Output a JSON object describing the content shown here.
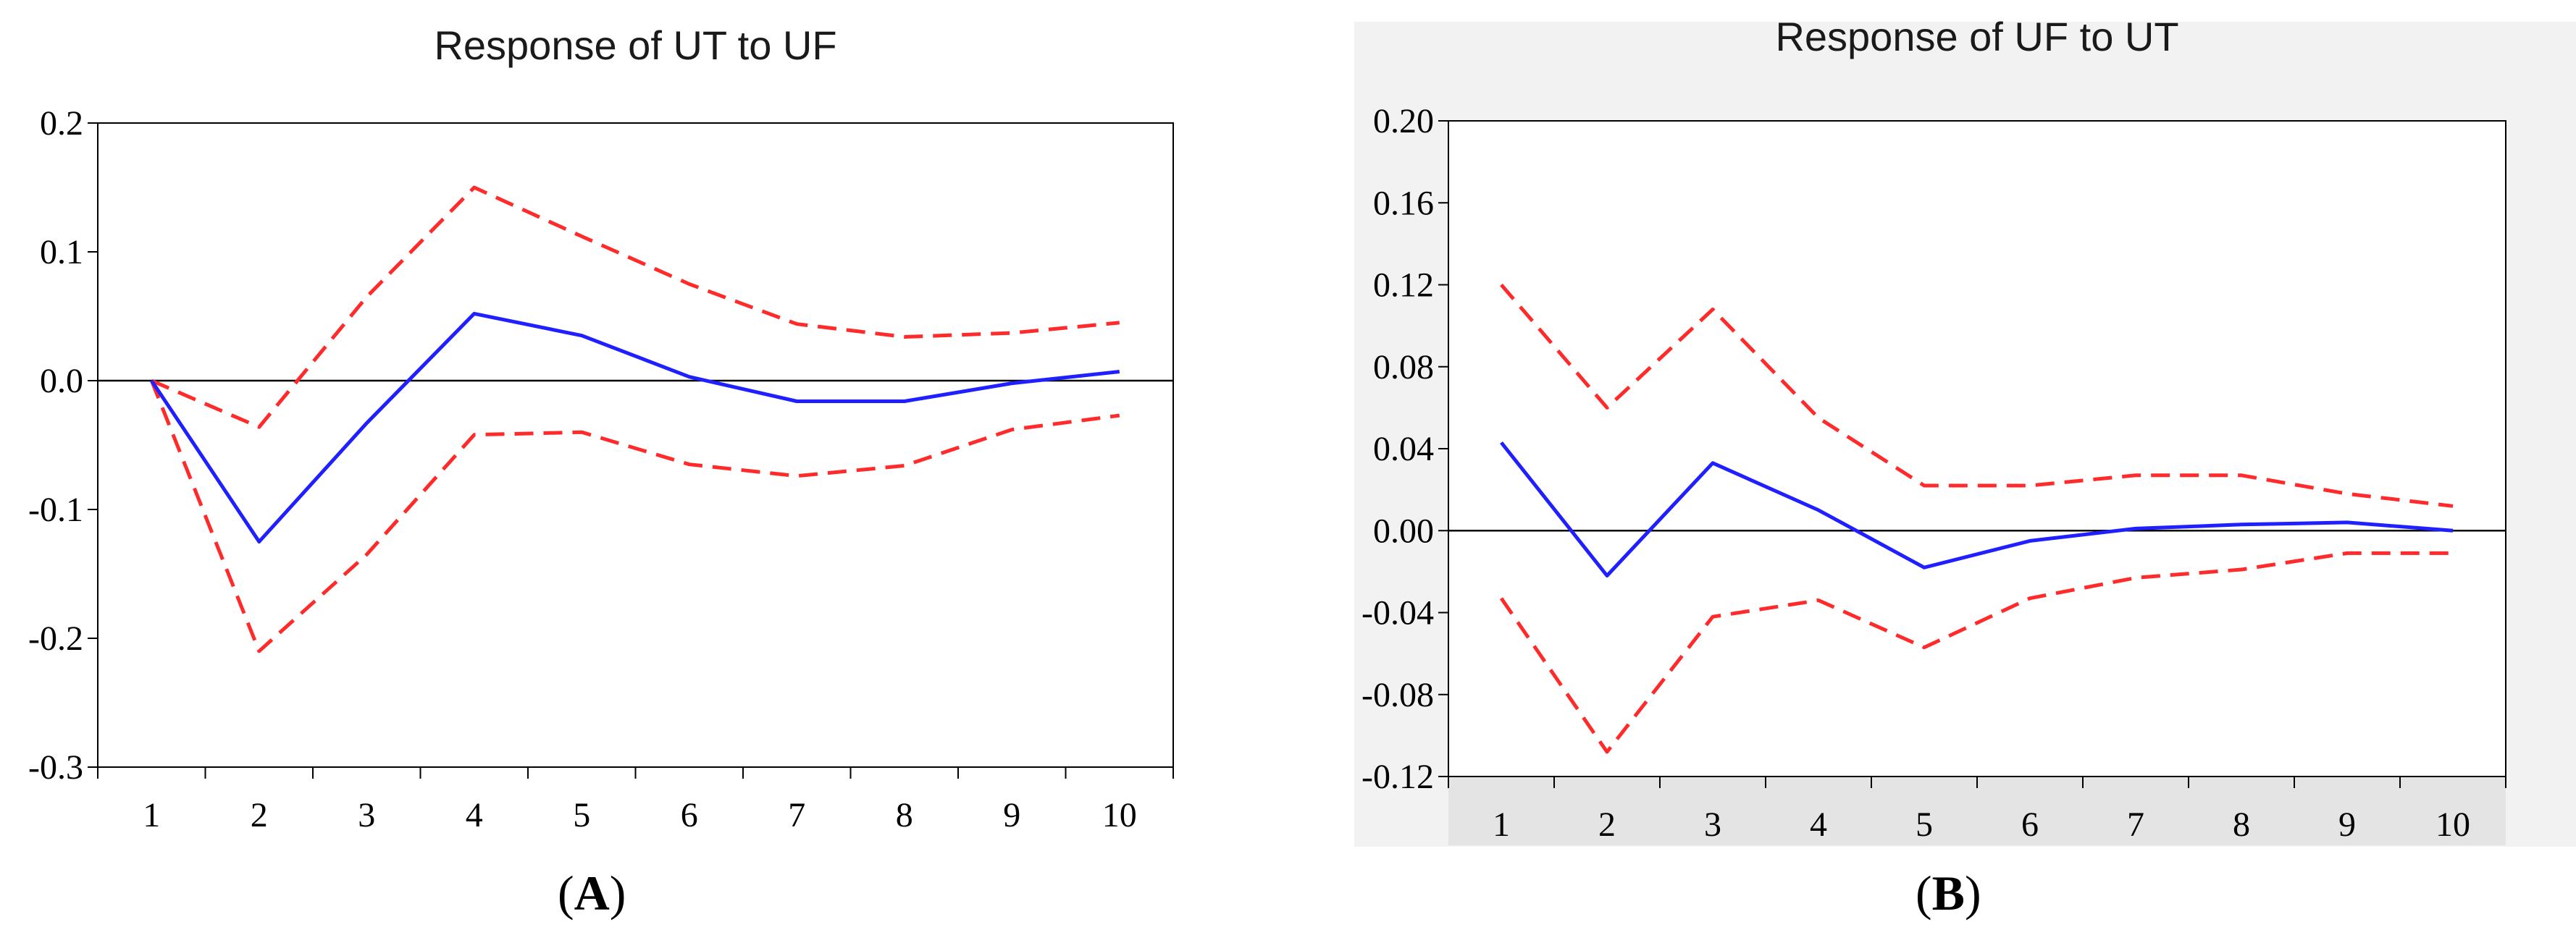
{
  "chart_data": [
    {
      "type": "line",
      "panel": "A",
      "title": "Response of UT to UF",
      "panel_label": {
        "open": "(",
        "letter": "A",
        "close": ")"
      },
      "x": [
        1,
        2,
        3,
        4,
        5,
        6,
        7,
        8,
        9,
        10
      ],
      "x_tick_labels": [
        "1",
        "2",
        "3",
        "4",
        "5",
        "6",
        "7",
        "8",
        "9",
        "10"
      ],
      "ylim": [
        -0.3,
        0.2
      ],
      "y_ticks": [
        0.2,
        0.1,
        0.0,
        -0.1,
        -0.2,
        -0.3
      ],
      "y_tick_labels": [
        "0.2",
        "0.1",
        "0.0",
        "-0.1",
        "-0.2",
        "-0.3"
      ],
      "series": [
        {
          "name": "response",
          "style": "solid",
          "color": "#1f1fff",
          "values": [
            0.0,
            -0.125,
            -0.033,
            0.052,
            0.035,
            0.003,
            -0.016,
            -0.016,
            -0.002,
            0.007
          ]
        },
        {
          "name": "upper band",
          "style": "dashed",
          "color": "#ff2a2a",
          "values": [
            0.0,
            -0.036,
            0.065,
            0.15,
            0.112,
            0.075,
            0.044,
            0.034,
            0.037,
            0.045
          ]
        },
        {
          "name": "lower band",
          "style": "dashed",
          "color": "#ff2a2a",
          "values": [
            0.0,
            -0.21,
            -0.135,
            -0.042,
            -0.04,
            -0.065,
            -0.074,
            -0.066,
            -0.038,
            -0.027
          ]
        }
      ]
    },
    {
      "type": "line",
      "panel": "B",
      "title": "Response of UF to UT",
      "panel_label": {
        "open": "(",
        "letter": "B",
        "close": ")"
      },
      "x": [
        1,
        2,
        3,
        4,
        5,
        6,
        7,
        8,
        9,
        10
      ],
      "x_tick_labels": [
        "1",
        "2",
        "3",
        "4",
        "5",
        "6",
        "7",
        "8",
        "9",
        "10"
      ],
      "ylim": [
        -0.12,
        0.2
      ],
      "y_ticks": [
        0.2,
        0.16,
        0.12,
        0.08,
        0.04,
        0.0,
        -0.04,
        -0.08,
        -0.12
      ],
      "y_tick_labels": [
        "0.20",
        "0.16",
        "0.12",
        "0.08",
        "0.04",
        "0.00",
        "-0.04",
        "-0.08",
        "-0.12"
      ],
      "series": [
        {
          "name": "response",
          "style": "solid",
          "color": "#1f1fff",
          "values": [
            0.043,
            -0.022,
            0.033,
            0.01,
            -0.018,
            -0.005,
            0.001,
            0.003,
            0.004,
            0.0
          ]
        },
        {
          "name": "upper band",
          "style": "dashed",
          "color": "#ff2a2a",
          "values": [
            0.12,
            0.06,
            0.108,
            0.055,
            0.022,
            0.022,
            0.027,
            0.027,
            0.018,
            0.012
          ]
        },
        {
          "name": "lower band",
          "style": "dashed",
          "color": "#ff2a2a",
          "values": [
            -0.033,
            -0.108,
            -0.042,
            -0.034,
            -0.057,
            -0.033,
            -0.023,
            -0.019,
            -0.011,
            -0.011
          ]
        }
      ]
    }
  ]
}
